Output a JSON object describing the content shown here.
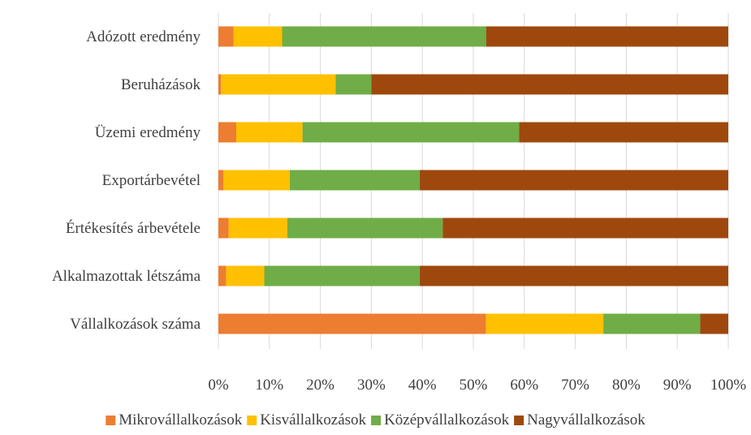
{
  "chart_data": {
    "type": "bar",
    "orientation": "horizontal",
    "stacked": "percent",
    "categories": [
      "Adózott eredmény",
      "Beruházások",
      "Üzemi eredmény",
      "Exportárbevétel",
      "Értékesítés árbevétele",
      "Alkalmazottak létszáma",
      "Vállalkozások száma"
    ],
    "series": [
      {
        "name": "Mikrovállalkozások",
        "color": "#ed7d31",
        "values": [
          3,
          0.5,
          3.5,
          1,
          2,
          1.5,
          52.5
        ]
      },
      {
        "name": "Kisvállalkozások",
        "color": "#ffc000",
        "values": [
          9.5,
          22.5,
          13,
          13,
          11.5,
          7.5,
          23
        ]
      },
      {
        "name": "Középvállalkozások",
        "color": "#70ad47",
        "values": [
          40,
          7,
          42.5,
          25.5,
          30.5,
          30.5,
          19
        ]
      },
      {
        "name": "Nagyvállalkozások",
        "color": "#9e480e",
        "values": [
          47.5,
          70,
          41,
          60.5,
          56,
          60.5,
          5.5
        ]
      }
    ],
    "x_ticks": [
      "0%",
      "10%",
      "20%",
      "30%",
      "40%",
      "50%",
      "60%",
      "70%",
      "80%",
      "90%",
      "100%"
    ],
    "xlim": [
      0,
      100
    ],
    "grid": true,
    "legend_position": "bottom"
  }
}
